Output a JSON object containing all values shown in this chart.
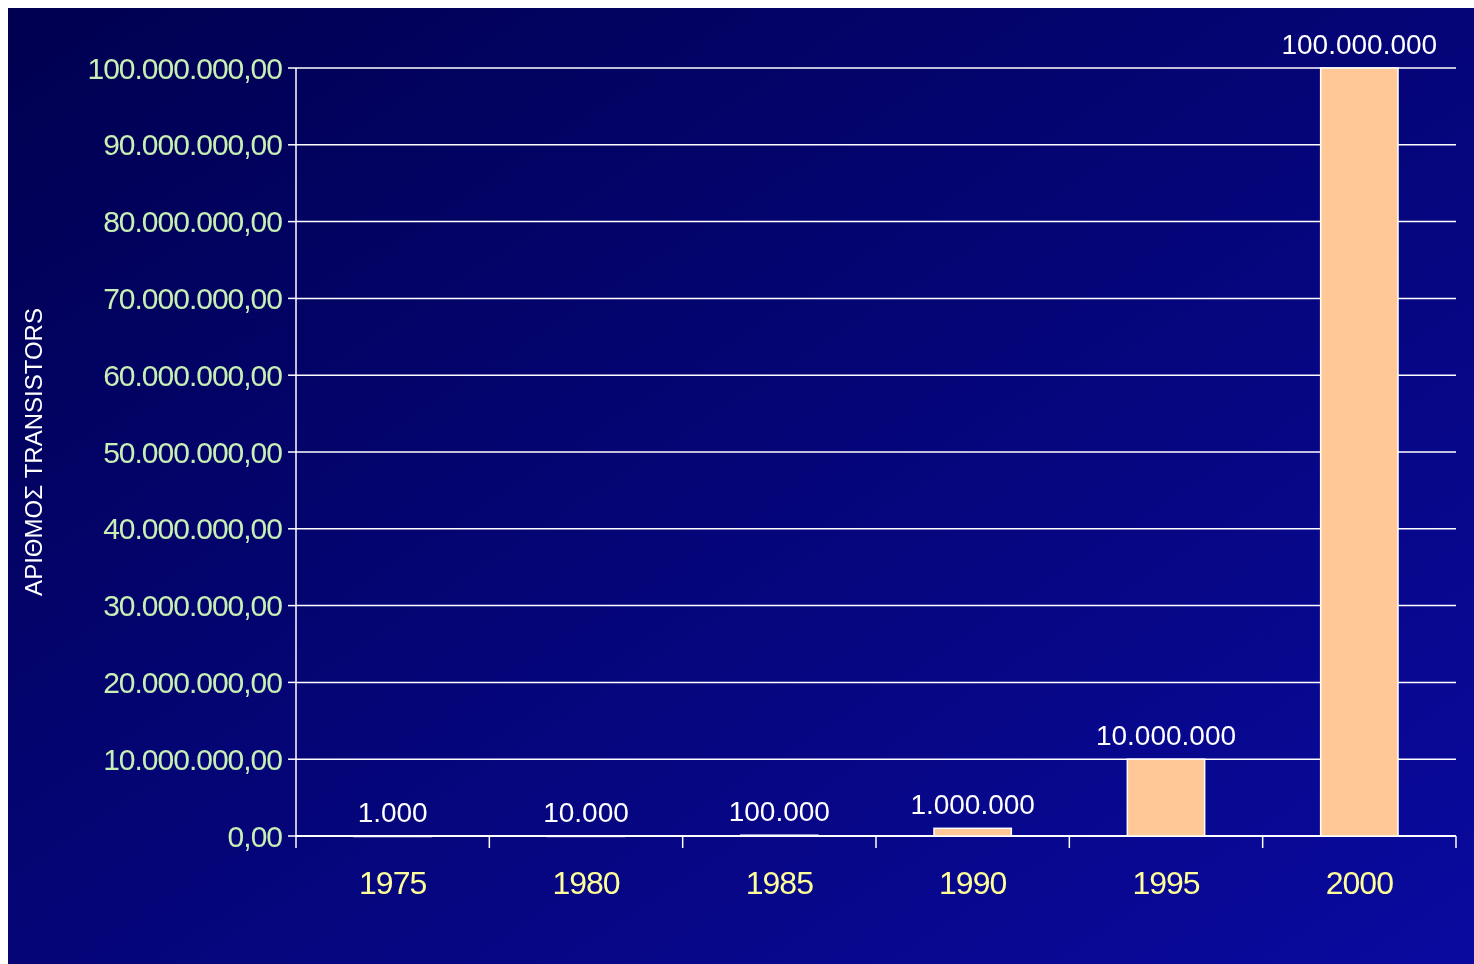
{
  "chart_data": {
    "type": "bar",
    "ylabel": "ΑΡΙΘΜΟΣ TRANSISTORS",
    "categories": [
      "1975",
      "1980",
      "1985",
      "1990",
      "1995",
      "2000"
    ],
    "values": [
      1000,
      10000,
      100000,
      1000000,
      10000000,
      100000000
    ],
    "value_labels": [
      "1.000",
      "10.000",
      "100.000",
      "1.000.000",
      "10.000.000",
      "100.000.000"
    ],
    "color": "#ffc896",
    "ylim": [
      0,
      100000000
    ],
    "yticks": [
      {
        "value": 0,
        "label": "0,00"
      },
      {
        "value": 10000000,
        "label": "10.000.000,00"
      },
      {
        "value": 20000000,
        "label": "20.000.000,00"
      },
      {
        "value": 30000000,
        "label": "30.000.000,00"
      },
      {
        "value": 40000000,
        "label": "40.000.000,00"
      },
      {
        "value": 50000000,
        "label": "50.000.000,00"
      },
      {
        "value": 60000000,
        "label": "60.000.000,00"
      },
      {
        "value": 70000000,
        "label": "70.000.000,00"
      },
      {
        "value": 80000000,
        "label": "80.000.000,00"
      },
      {
        "value": 90000000,
        "label": "90.000.000,00"
      },
      {
        "value": 100000000,
        "label": "100.000.000,00"
      }
    ],
    "grid": true
  }
}
